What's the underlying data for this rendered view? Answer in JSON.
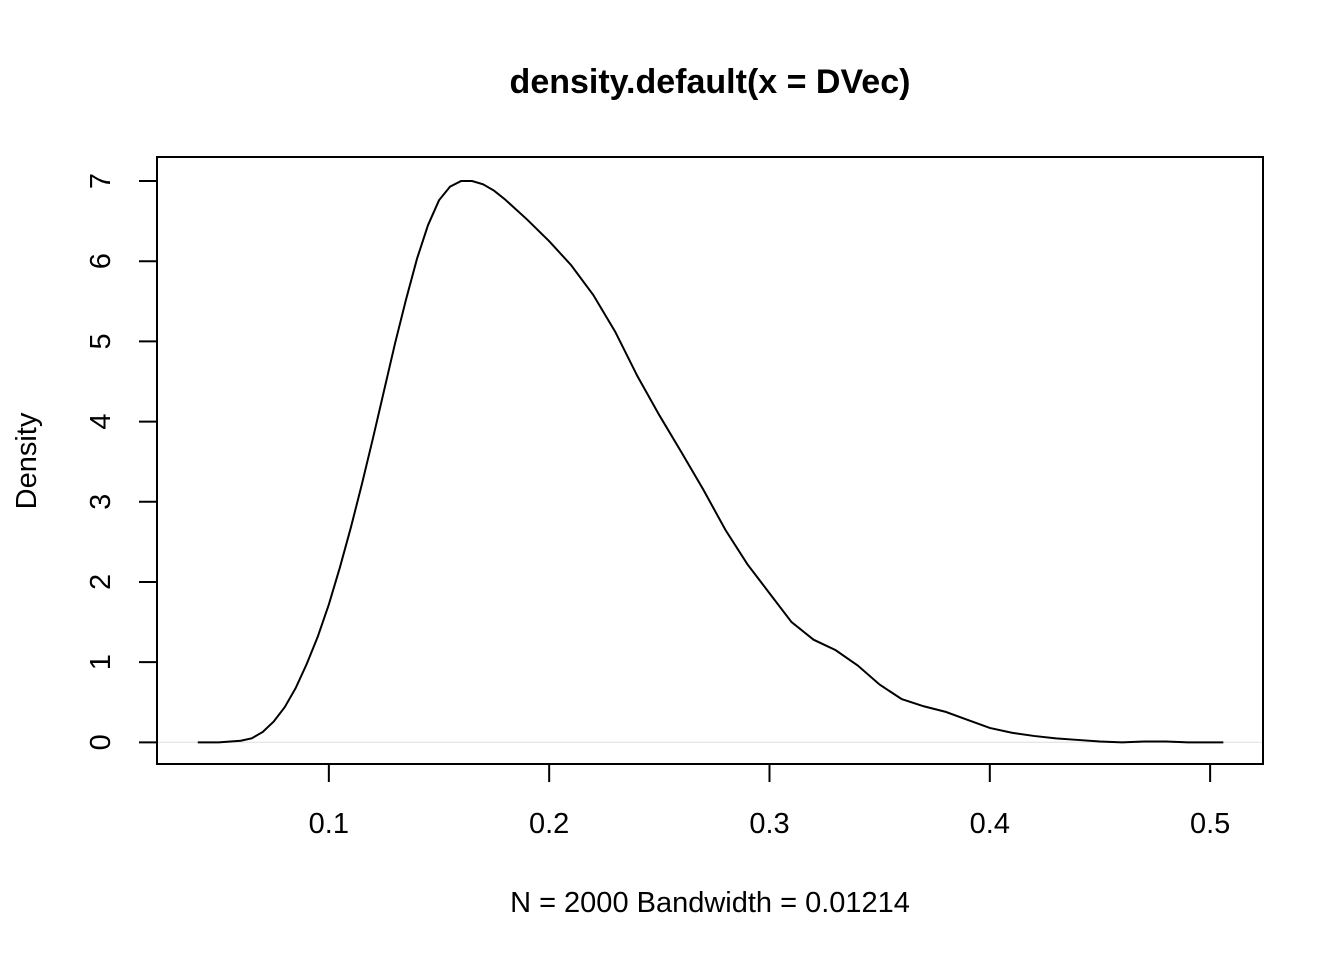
{
  "chart_data": {
    "type": "line",
    "title": "density.default(x = DVec)",
    "xlabel": "N = 2000   Bandwidth = 0.01214",
    "ylabel": "Density",
    "xlim": [
      0.022,
      0.524
    ],
    "ylim": [
      -0.27,
      7.3
    ],
    "xticks": [
      0.1,
      0.2,
      0.3,
      0.4,
      0.5
    ],
    "xtick_labels": [
      "0.1",
      "0.2",
      "0.3",
      "0.4",
      "0.5"
    ],
    "yticks": [
      0,
      1,
      2,
      3,
      4,
      5,
      6,
      7
    ],
    "ytick_labels": [
      "0",
      "1",
      "2",
      "3",
      "4",
      "5",
      "6",
      "7"
    ],
    "grid": false,
    "zero_line": true,
    "line_color": "#000000",
    "series": [
      {
        "x": [
          0.0405,
          0.05,
          0.06,
          0.065,
          0.07,
          0.075,
          0.08,
          0.085,
          0.09,
          0.095,
          0.1,
          0.105,
          0.11,
          0.115,
          0.12,
          0.125,
          0.13,
          0.135,
          0.14,
          0.145,
          0.15,
          0.155,
          0.16,
          0.165,
          0.17,
          0.175,
          0.18,
          0.19,
          0.2,
          0.21,
          0.22,
          0.23,
          0.24,
          0.25,
          0.26,
          0.27,
          0.28,
          0.29,
          0.3,
          0.31,
          0.32,
          0.33,
          0.34,
          0.35,
          0.36,
          0.37,
          0.38,
          0.39,
          0.4,
          0.41,
          0.42,
          0.43,
          0.44,
          0.45,
          0.46,
          0.47,
          0.48,
          0.49,
          0.5,
          0.506
        ],
        "y": [
          0.0,
          0.0,
          0.02,
          0.05,
          0.13,
          0.26,
          0.44,
          0.68,
          0.98,
          1.32,
          1.72,
          2.18,
          2.68,
          3.22,
          3.79,
          4.38,
          4.97,
          5.52,
          6.03,
          6.45,
          6.76,
          6.93,
          7.0,
          7.0,
          6.96,
          6.88,
          6.77,
          6.52,
          6.25,
          5.95,
          5.58,
          5.12,
          4.57,
          4.08,
          3.62,
          3.15,
          2.65,
          2.22,
          1.86,
          1.5,
          1.28,
          1.15,
          0.96,
          0.72,
          0.54,
          0.45,
          0.38,
          0.28,
          0.18,
          0.12,
          0.08,
          0.05,
          0.03,
          0.01,
          0.0,
          0.01,
          0.01,
          0.0,
          0.0,
          0.0
        ]
      }
    ]
  }
}
